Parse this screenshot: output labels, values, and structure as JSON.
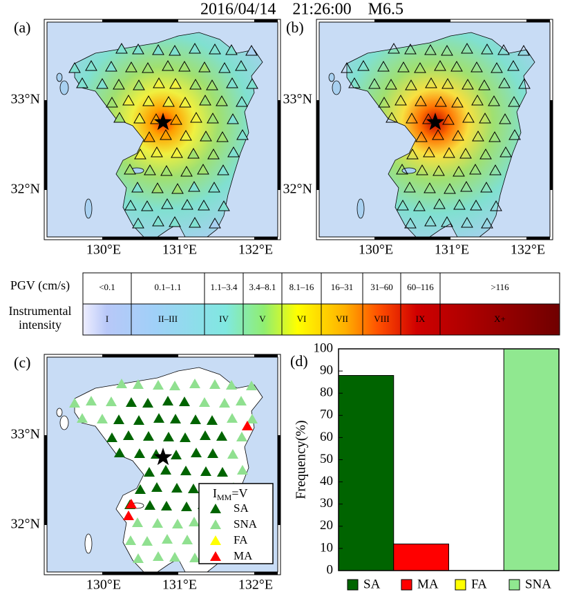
{
  "title": "2016/04/14    21:26:00    M6.5",
  "maps": [
    {
      "label": "(a)"
    },
    {
      "label": "(b)"
    },
    {
      "label": "(c)"
    }
  ],
  "map_axes": {
    "lat": [
      "33°N",
      "32°N"
    ],
    "lon": [
      "130°E",
      "131°E",
      "132°E"
    ]
  },
  "scale_table": {
    "pgv_header": "PGV (cm/s)",
    "intensity_header": [
      "Instrumental",
      "intensity"
    ],
    "pgv": [
      "<0.1",
      "0.1–1.1",
      "1.1–3.4",
      "3.4–8.1",
      "8.1–16",
      "16–31",
      "31–60",
      "60–116",
      ">116"
    ],
    "intensity": [
      "I",
      "II–III",
      "IV",
      "V",
      "VI",
      "VII",
      "VIII",
      "IX",
      "X+"
    ]
  },
  "map_legend": {
    "title": "I",
    "subscript": "MM",
    "suffix": "=V",
    "items": [
      "SA",
      "SNA",
      "FA",
      "MA"
    ],
    "colors": [
      "#006400",
      "#90e090",
      "#ffff00",
      "#ff0000"
    ]
  },
  "chart_data": {
    "type": "bar",
    "label": "(d)",
    "y_label": "Frequency(%)",
    "categories": [
      "SA",
      "MA",
      "FA",
      "SNA"
    ],
    "values": [
      88,
      12,
      0,
      100
    ],
    "colors": [
      "#006400",
      "#ff0000",
      "#ffff00",
      "#90e890"
    ],
    "ylim": [
      0,
      100
    ],
    "yticks": [
      0,
      10,
      20,
      30,
      40,
      50,
      60,
      70,
      80,
      90,
      100
    ]
  }
}
